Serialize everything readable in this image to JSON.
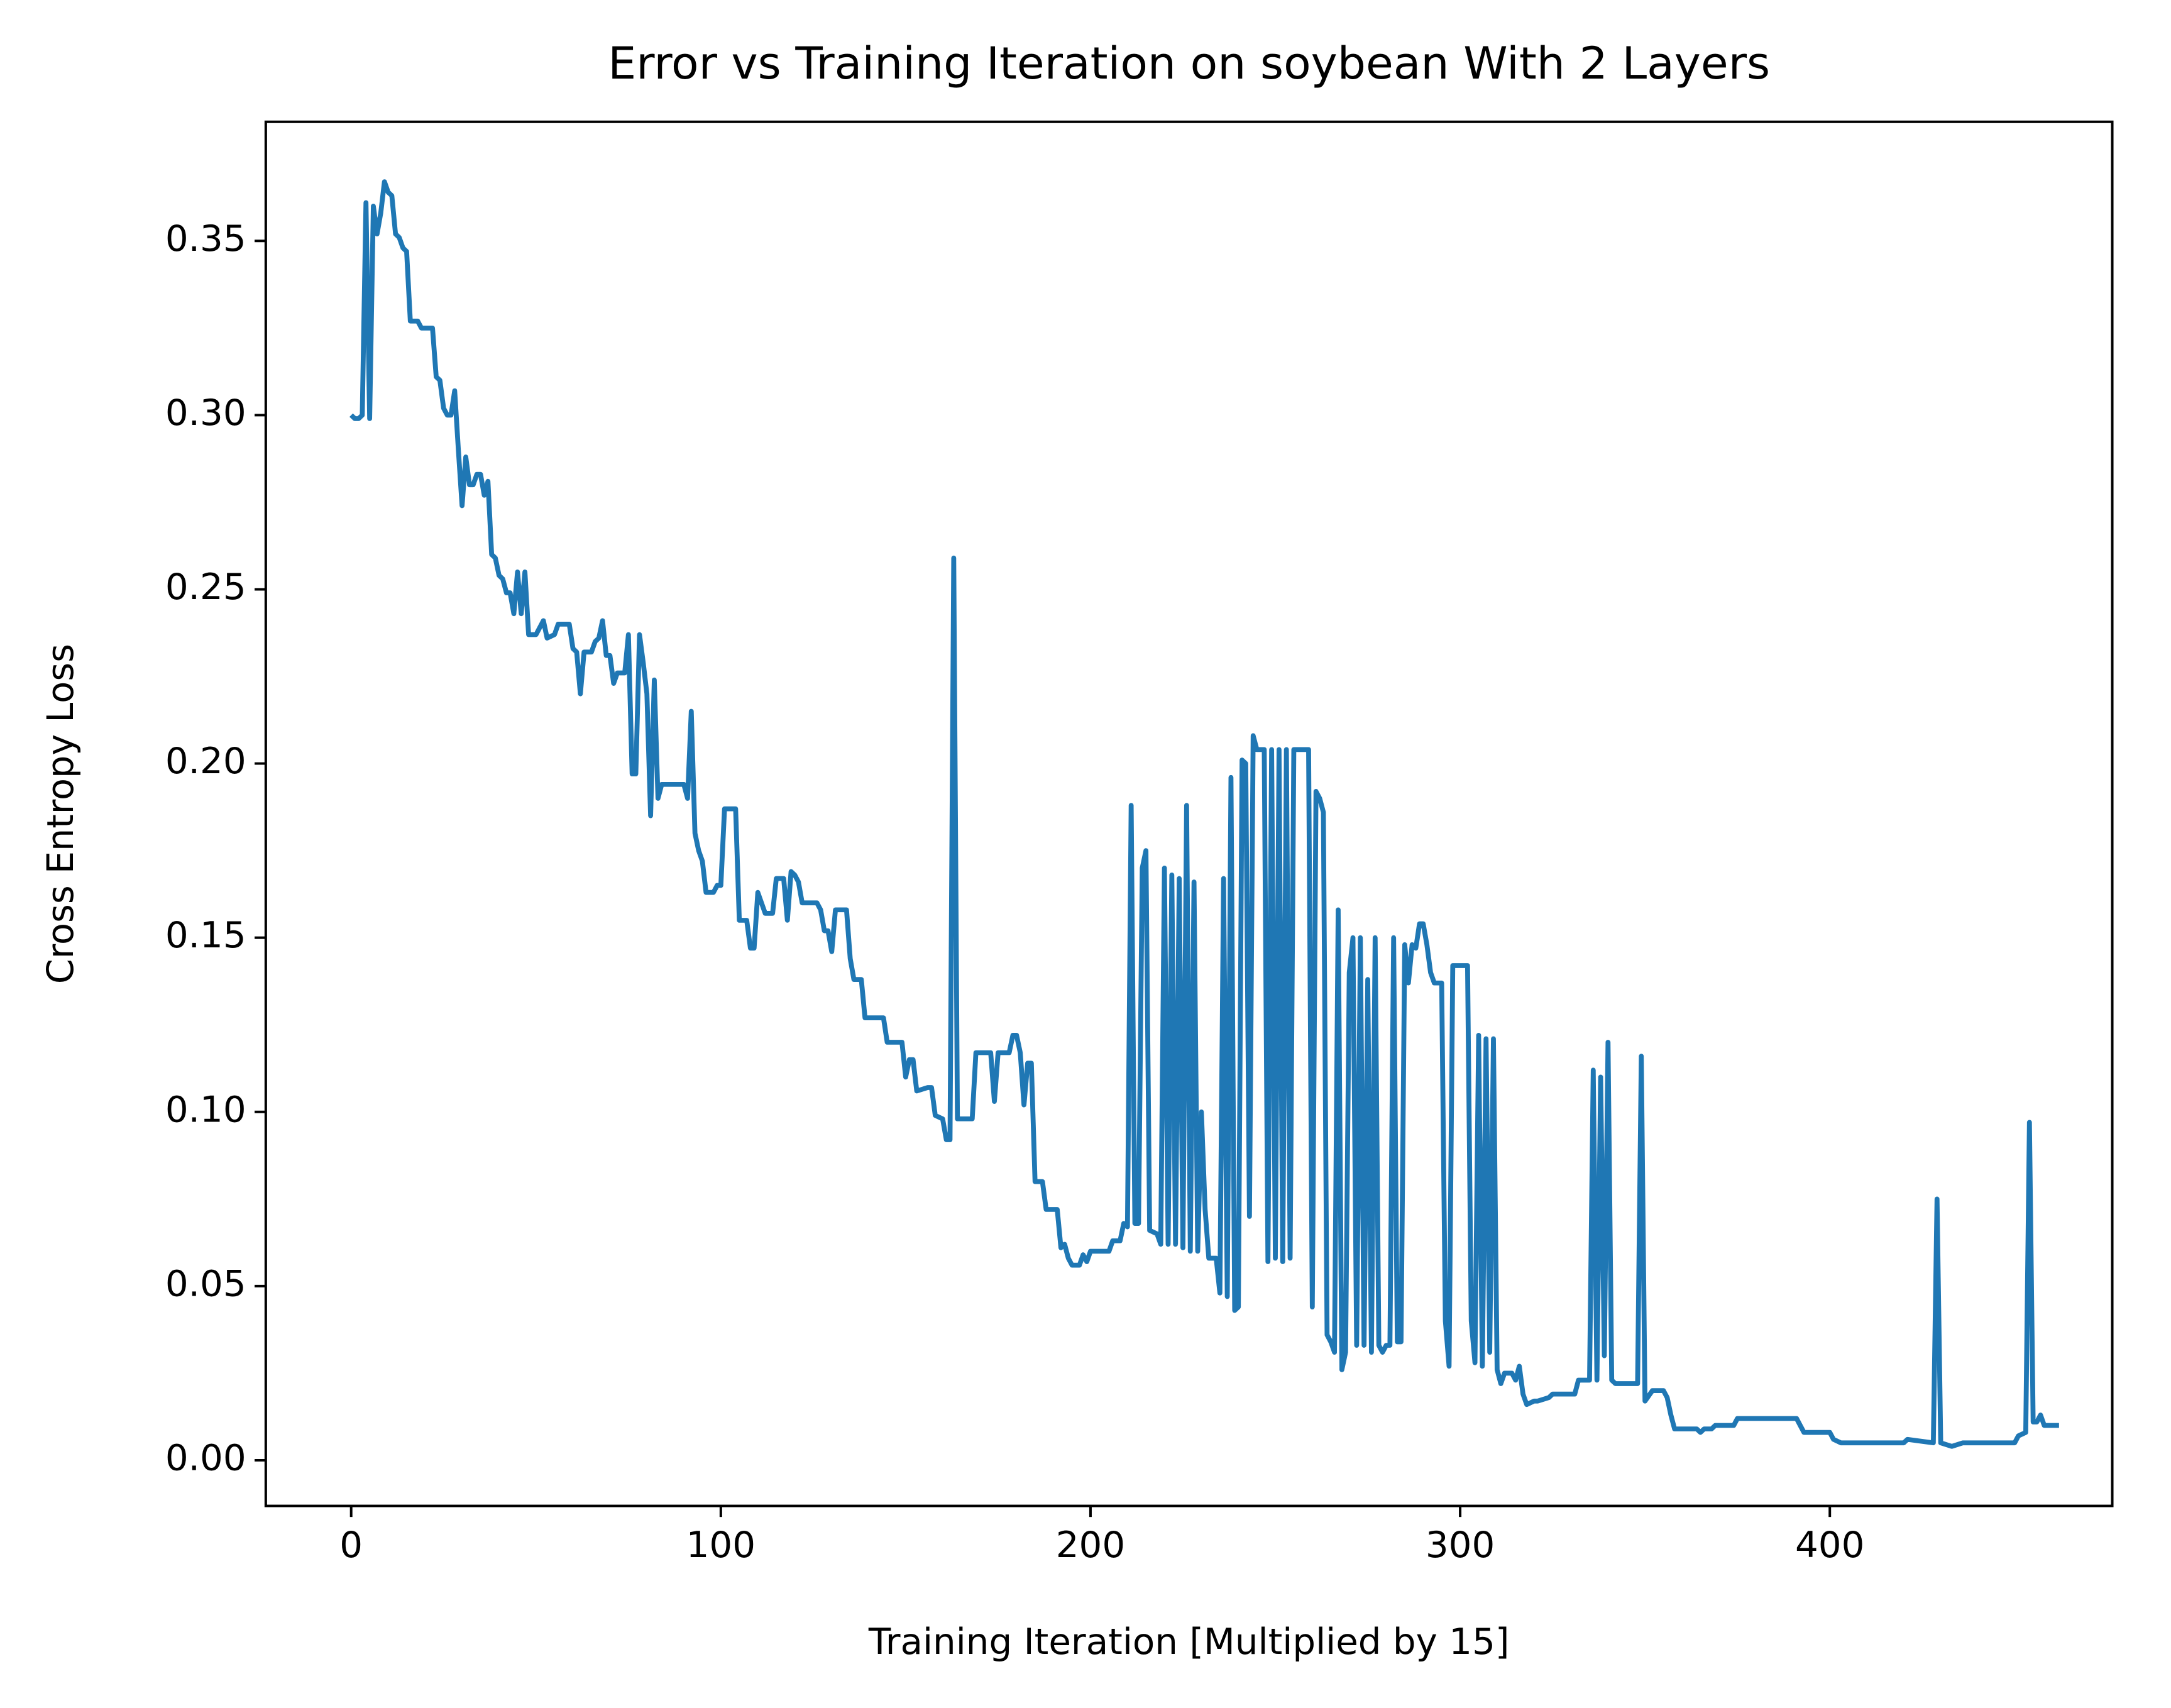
{
  "chart_data": {
    "type": "line",
    "title": "Error vs Training Iteration on soybean With 2 Layers",
    "x_label": "Training Iteration [Multiplied by 15]",
    "y_label": "Cross Entropy Loss",
    "color": "#1f77b4",
    "xlim": [
      -23.1,
      476.4
    ],
    "ylim": [
      -0.0131,
      0.3842
    ],
    "xticks": [
      0,
      100,
      200,
      300,
      400
    ],
    "yticks": [
      {
        "value": 0,
        "label": "0.00"
      },
      0.05,
      {
        "value": 0.1,
        "label": "0.10"
      },
      0.15,
      {
        "value": 0.2,
        "label": "0.20"
      },
      0.25,
      {
        "value": 0.3,
        "label": "0.30"
      },
      0.35
    ],
    "x": [
      0,
      1,
      2,
      3,
      4,
      5,
      6,
      7,
      8,
      9,
      10,
      11,
      12,
      13,
      14,
      15,
      16,
      18,
      19,
      22,
      23,
      24,
      25,
      26,
      27,
      28,
      29,
      30,
      31,
      32,
      33,
      34,
      35,
      36,
      37,
      38,
      39,
      40,
      41,
      42,
      43,
      44,
      45,
      46,
      47,
      48,
      50,
      52,
      53,
      55,
      56,
      59,
      60,
      61,
      62,
      63,
      65,
      66,
      67,
      68,
      69,
      70,
      71,
      72,
      74,
      75,
      76,
      77,
      78,
      79,
      80,
      81,
      82,
      83,
      84,
      90,
      91,
      92,
      93,
      94,
      95,
      96,
      98,
      99,
      100,
      101,
      104,
      105,
      107,
      108,
      109,
      110,
      111,
      112,
      114,
      115,
      117,
      118,
      119,
      120,
      121,
      122,
      126,
      127,
      128,
      129,
      130,
      131,
      134,
      135,
      136,
      138,
      139,
      144,
      145,
      149,
      150,
      151,
      152,
      153,
      156,
      157,
      158,
      160,
      161,
      162,
      163,
      164,
      168,
      169,
      173,
      174,
      175,
      178,
      179,
      180,
      181,
      182,
      183,
      184,
      185,
      187,
      188,
      191,
      192,
      193,
      194,
      195,
      197,
      198,
      199,
      200,
      205,
      206,
      208,
      209,
      210,
      211,
      212,
      213,
      214,
      215,
      216,
      218,
      219,
      220,
      221,
      222,
      223,
      224,
      225,
      226,
      227,
      228,
      229,
      230,
      231,
      232,
      234,
      235,
      236,
      237,
      238,
      239,
      240,
      241,
      242,
      243,
      244,
      245,
      246,
      247,
      248,
      249,
      250,
      251,
      252,
      253,
      254,
      255,
      259,
      260,
      261,
      262,
      263,
      264,
      265,
      266,
      267,
      268,
      269,
      270,
      271,
      272,
      273,
      274,
      275,
      276,
      277,
      278,
      279,
      280,
      281,
      282,
      283,
      284,
      285,
      286,
      287,
      288,
      289,
      290,
      291,
      292,
      293,
      294,
      295,
      296,
      297,
      298,
      302,
      303,
      304,
      305,
      306,
      307,
      308,
      309,
      310,
      311,
      312,
      314,
      315,
      316,
      317,
      318,
      320,
      321,
      324,
      325,
      331,
      332,
      335,
      336,
      337,
      338,
      339,
      340,
      341,
      342,
      348,
      349,
      350,
      352,
      355,
      356,
      357,
      358,
      364,
      365,
      366,
      368,
      369,
      374,
      375,
      391,
      392,
      393,
      400,
      401,
      403,
      420,
      421,
      428,
      429,
      430,
      433,
      436,
      450,
      451,
      453,
      454,
      455,
      456,
      457,
      458,
      462
    ],
    "values": [
      0.3,
      0.299,
      0.299,
      0.3,
      0.361,
      0.299,
      0.36,
      0.352,
      0.358,
      0.367,
      0.364,
      0.363,
      0.352,
      0.351,
      0.348,
      0.347,
      0.327,
      0.327,
      0.325,
      0.325,
      0.311,
      0.31,
      0.302,
      0.3,
      0.3,
      0.307,
      0.29,
      0.274,
      0.288,
      0.28,
      0.28,
      0.283,
      0.283,
      0.277,
      0.281,
      0.26,
      0.259,
      0.254,
      0.253,
      0.249,
      0.249,
      0.243,
      0.255,
      0.243,
      0.255,
      0.237,
      0.237,
      0.241,
      0.236,
      0.237,
      0.24,
      0.24,
      0.233,
      0.232,
      0.22,
      0.232,
      0.232,
      0.235,
      0.236,
      0.241,
      0.231,
      0.231,
      0.223,
      0.226,
      0.226,
      0.237,
      0.197,
      0.197,
      0.237,
      0.229,
      0.22,
      0.185,
      0.224,
      0.19,
      0.194,
      0.194,
      0.19,
      0.215,
      0.18,
      0.175,
      0.172,
      0.163,
      0.163,
      0.165,
      0.165,
      0.187,
      0.187,
      0.155,
      0.155,
      0.147,
      0.147,
      0.163,
      0.16,
      0.157,
      0.157,
      0.167,
      0.167,
      0.155,
      0.169,
      0.168,
      0.166,
      0.16,
      0.16,
      0.158,
      0.152,
      0.152,
      0.146,
      0.158,
      0.158,
      0.144,
      0.138,
      0.138,
      0.127,
      0.127,
      0.12,
      0.12,
      0.11,
      0.115,
      0.115,
      0.106,
      0.107,
      0.107,
      0.099,
      0.098,
      0.092,
      0.092,
      0.259,
      0.098,
      0.098,
      0.117,
      0.117,
      0.103,
      0.117,
      0.117,
      0.122,
      0.122,
      0.117,
      0.102,
      0.114,
      0.114,
      0.08,
      0.08,
      0.072,
      0.072,
      0.061,
      0.062,
      0.058,
      0.056,
      0.056,
      0.059,
      0.057,
      0.06,
      0.06,
      0.063,
      0.063,
      0.068,
      0.067,
      0.188,
      0.068,
      0.068,
      0.17,
      0.175,
      0.066,
      0.065,
      0.062,
      0.17,
      0.062,
      0.168,
      0.062,
      0.167,
      0.061,
      0.188,
      0.06,
      0.166,
      0.06,
      0.1,
      0.072,
      0.058,
      0.058,
      0.048,
      0.167,
      0.047,
      0.196,
      0.043,
      0.044,
      0.201,
      0.2,
      0.07,
      0.208,
      0.204,
      0.204,
      0.204,
      0.057,
      0.204,
      0.058,
      0.204,
      0.057,
      0.204,
      0.058,
      0.204,
      0.204,
      0.044,
      0.192,
      0.19,
      0.186,
      0.036,
      0.034,
      0.031,
      0.158,
      0.026,
      0.031,
      0.14,
      0.15,
      0.033,
      0.15,
      0.033,
      0.138,
      0.031,
      0.15,
      0.033,
      0.031,
      0.033,
      0.033,
      0.15,
      0.034,
      0.034,
      0.148,
      0.137,
      0.148,
      0.147,
      0.154,
      0.154,
      0.148,
      0.14,
      0.137,
      0.137,
      0.137,
      0.04,
      0.027,
      0.142,
      0.142,
      0.04,
      0.028,
      0.122,
      0.027,
      0.121,
      0.031,
      0.121,
      0.026,
      0.022,
      0.025,
      0.025,
      0.023,
      0.027,
      0.019,
      0.016,
      0.017,
      0.017,
      0.018,
      0.019,
      0.019,
      0.023,
      0.023,
      0.112,
      0.023,
      0.11,
      0.03,
      0.12,
      0.023,
      0.022,
      0.022,
      0.116,
      0.017,
      0.02,
      0.02,
      0.018,
      0.013,
      0.009,
      0.009,
      0.008,
      0.009,
      0.009,
      0.01,
      0.01,
      0.012,
      0.012,
      0.01,
      0.008,
      0.008,
      0.006,
      0.005,
      0.005,
      0.006,
      0.005,
      0.075,
      0.005,
      0.004,
      0.005,
      0.005,
      0.007,
      0.008,
      0.097,
      0.011,
      0.011,
      0.013,
      0.01,
      0.01
    ]
  }
}
